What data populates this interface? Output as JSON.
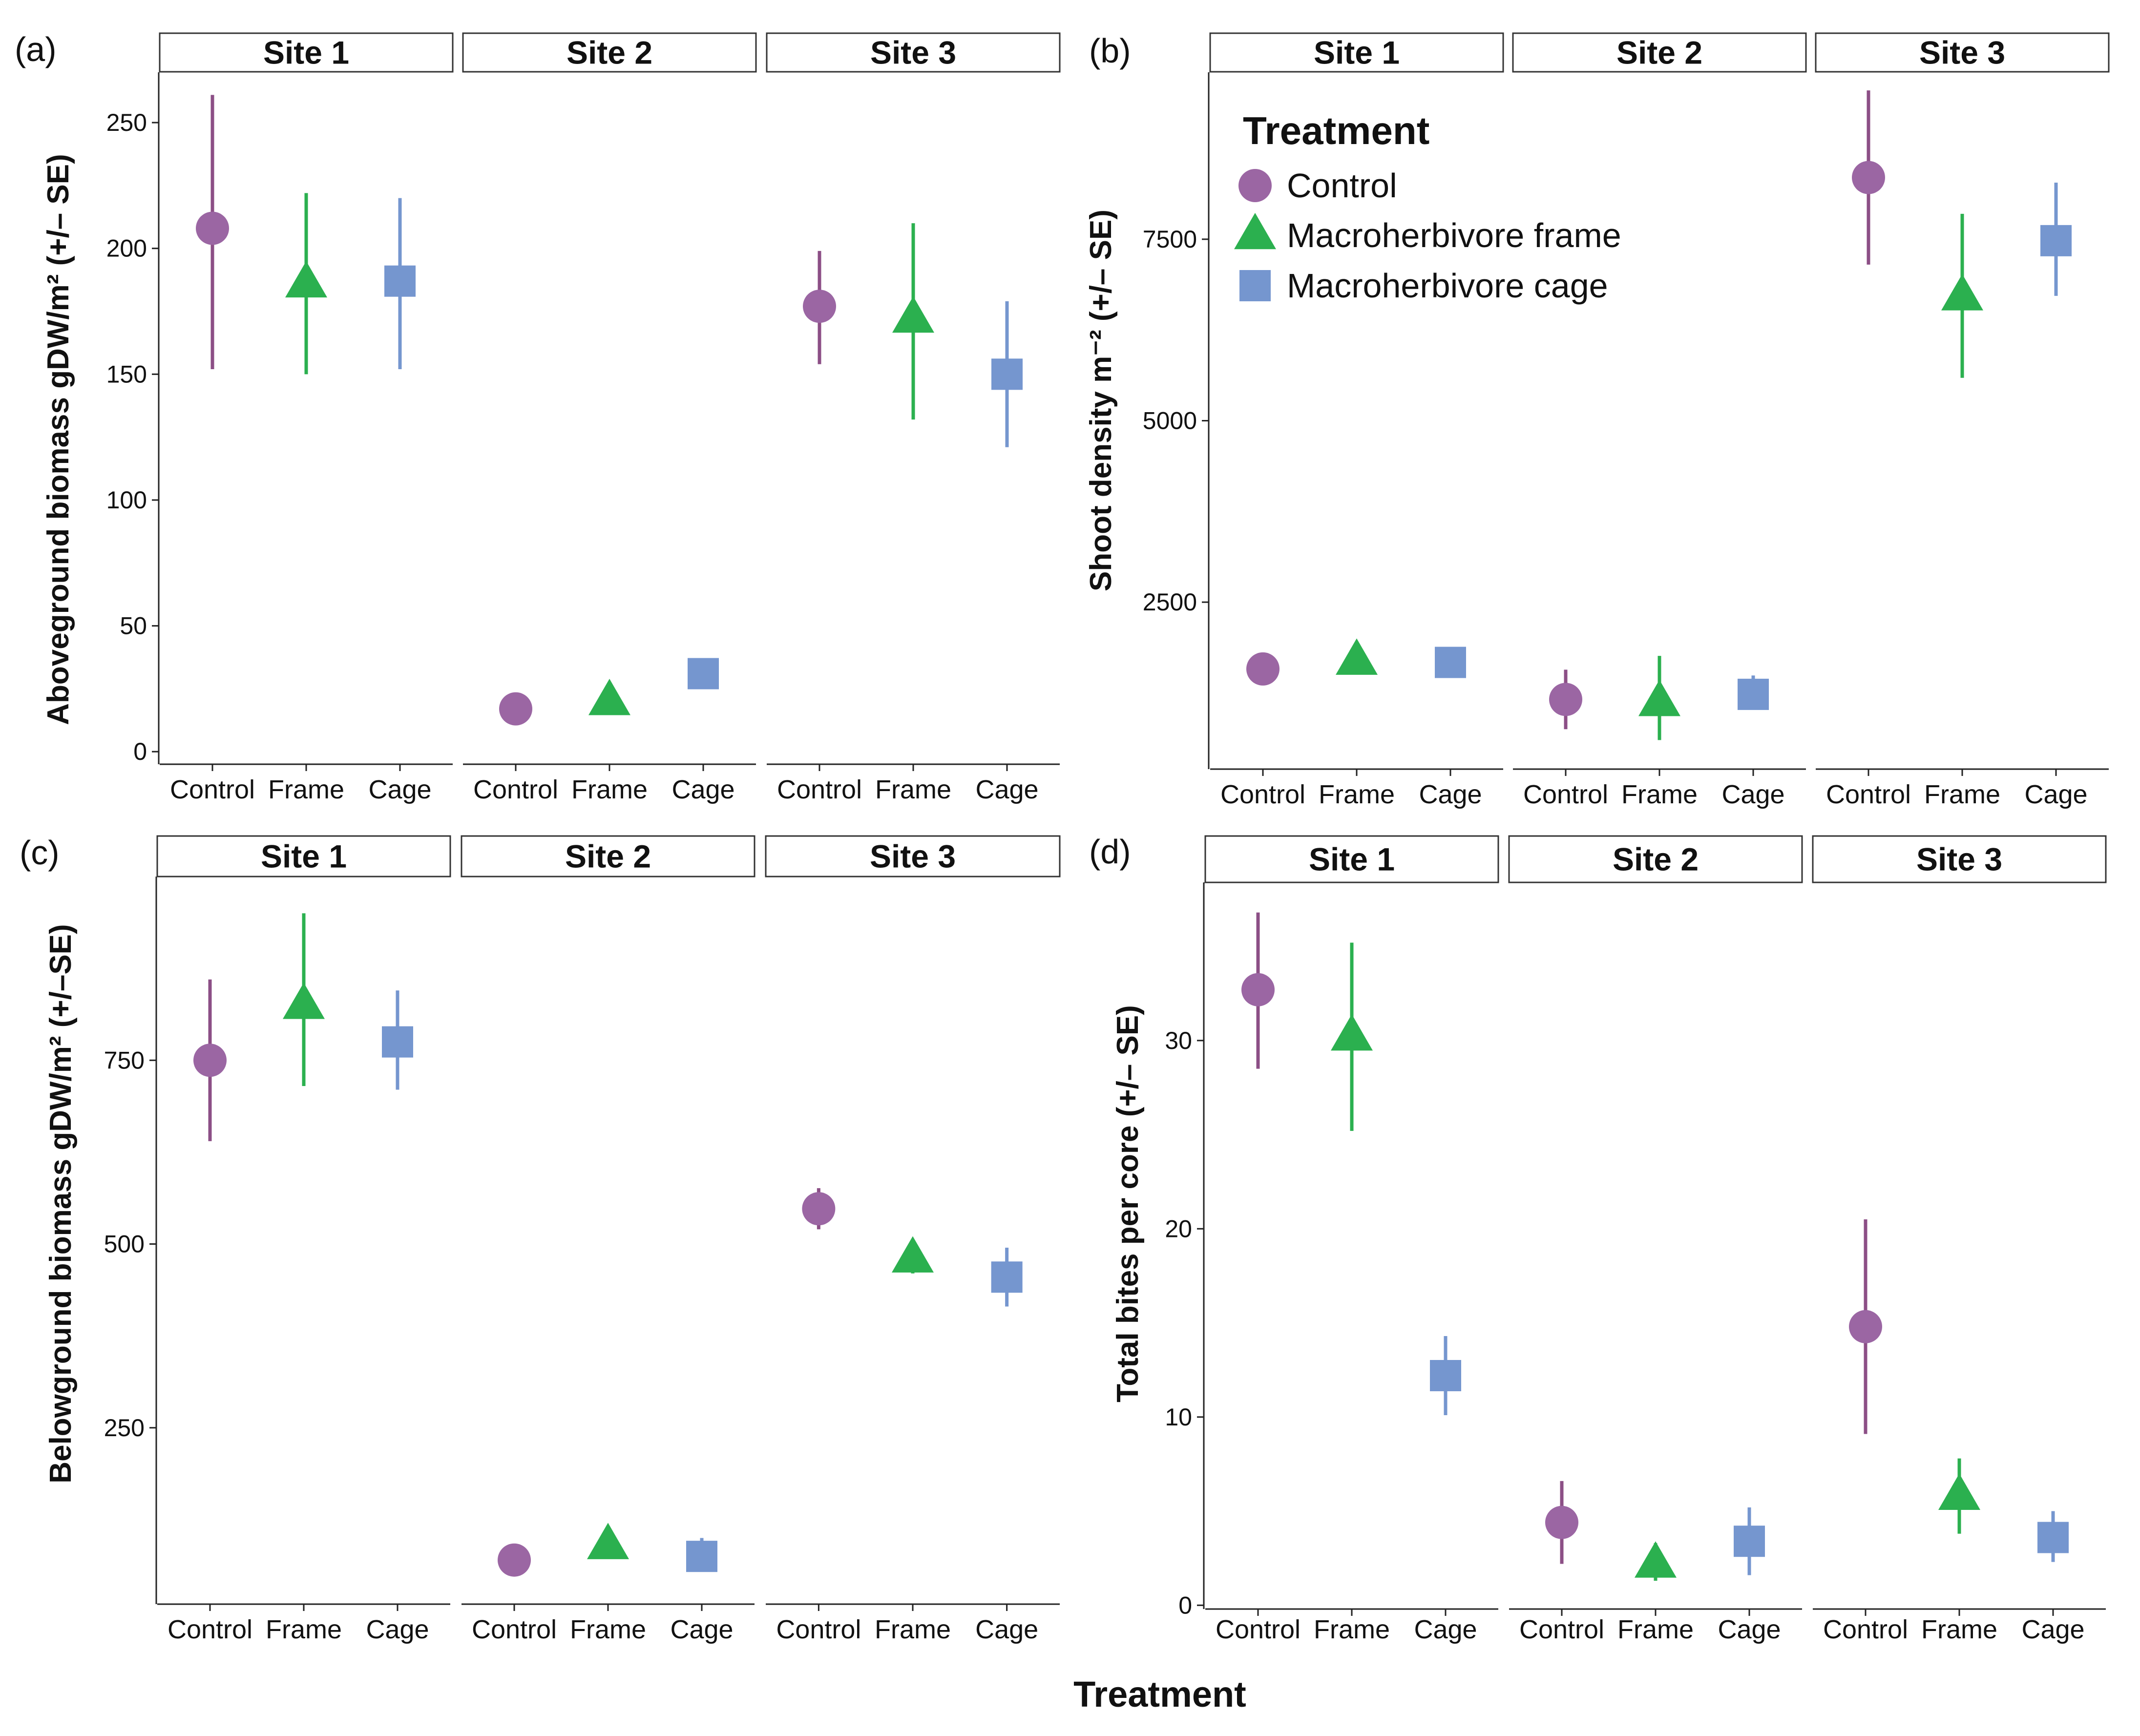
{
  "colors": {
    "control": "#9b66a3",
    "frame": "#2bb04f",
    "cage": "#7596cf",
    "control_bar": "#8c4f86",
    "axis": "#222222"
  },
  "x_axis_title": "Treatment",
  "legend": {
    "title": "Treatment",
    "items": [
      {
        "key": "control",
        "label": "Control",
        "shape": "circle"
      },
      {
        "key": "frame",
        "label": "Macroherbivore frame",
        "shape": "triangle"
      },
      {
        "key": "cage",
        "label": "Macroherbivore cage",
        "shape": "square"
      }
    ]
  },
  "chart_data": [
    {
      "type": "scatter",
      "panel": "(a)",
      "ylabel": "Aboveground biomass gDW/m² (+/– SE)",
      "categories": [
        "Control",
        "Frame",
        "Cage"
      ],
      "ylim": [
        -5,
        270
      ],
      "yticks": [
        0,
        50,
        100,
        150,
        200,
        250
      ],
      "sites": [
        {
          "name": "Site 1",
          "mean": [
            208,
            186,
            187
          ],
          "lower": [
            152,
            150,
            152
          ],
          "upper": [
            261,
            222,
            220
          ]
        },
        {
          "name": "Site 2",
          "mean": [
            17,
            20,
            31
          ],
          "lower": [
            17,
            20,
            31
          ],
          "upper": [
            17,
            20,
            31
          ]
        },
        {
          "name": "Site 3",
          "mean": [
            177,
            172,
            150
          ],
          "lower": [
            154,
            132,
            121
          ],
          "upper": [
            199,
            210,
            179
          ]
        }
      ]
    },
    {
      "type": "scatter",
      "panel": "(b)",
      "ylabel": "Shoot density m⁻² (+/– SE)",
      "categories": [
        "Control",
        "Frame",
        "Cage"
      ],
      "ylim": [
        200,
        9800
      ],
      "yticks": [
        2500,
        5000,
        7500
      ],
      "sites": [
        {
          "name": "Site 1",
          "mean": [
            1580,
            1690,
            1670
          ],
          "lower": [
            1580,
            1690,
            1670
          ],
          "upper": [
            1580,
            1690,
            1670
          ]
        },
        {
          "name": "Site 2",
          "mean": [
            1160,
            1120,
            1230
          ],
          "lower": [
            750,
            600,
            1150
          ],
          "upper": [
            1570,
            1760,
            1490
          ]
        },
        {
          "name": "Site 3",
          "mean": [
            8350,
            6710,
            7480
          ],
          "lower": [
            7150,
            5590,
            6720
          ],
          "upper": [
            9550,
            7850,
            8280
          ]
        }
      ]
    },
    {
      "type": "scatter",
      "panel": "(c)",
      "ylabel": "Belowground biomass gDW/m² (+/–SE)",
      "categories": [
        "Control",
        "Frame",
        "Cage"
      ],
      "ylim": [
        10,
        1000
      ],
      "yticks": [
        250,
        500,
        750
      ],
      "sites": [
        {
          "name": "Site 1",
          "mean": [
            750,
            825,
            775
          ],
          "lower": [
            640,
            715,
            710
          ],
          "upper": [
            860,
            950,
            845
          ]
        },
        {
          "name": "Site 2",
          "mean": [
            70,
            90,
            75
          ],
          "lower": [
            70,
            90,
            55
          ],
          "upper": [
            70,
            90,
            100
          ]
        },
        {
          "name": "Site 3",
          "mean": [
            548,
            480,
            455
          ],
          "lower": [
            520,
            460,
            415
          ],
          "upper": [
            576,
            505,
            495
          ]
        }
      ]
    },
    {
      "type": "scatter",
      "panel": "(d)",
      "ylabel": "Total bites per core (+/– SE)",
      "categories": [
        "Control",
        "Frame",
        "Cage"
      ],
      "ylim": [
        -0.2,
        38.4
      ],
      "yticks": [
        0,
        10,
        20,
        30
      ],
      "sites": [
        {
          "name": "Site 1",
          "mean": [
            32.7,
            30.2,
            12.2
          ],
          "lower": [
            28.5,
            25.2,
            10.1
          ],
          "upper": [
            36.8,
            35.2,
            14.3
          ]
        },
        {
          "name": "Site 2",
          "mean": [
            4.4,
            2.2,
            3.4
          ],
          "lower": [
            2.2,
            1.3,
            1.6
          ],
          "upper": [
            6.6,
            3.3,
            5.2
          ]
        },
        {
          "name": "Site 3",
          "mean": [
            14.8,
            5.8,
            3.6
          ],
          "lower": [
            9.1,
            3.8,
            2.3
          ],
          "upper": [
            20.5,
            7.8,
            5.0
          ]
        }
      ]
    }
  ]
}
